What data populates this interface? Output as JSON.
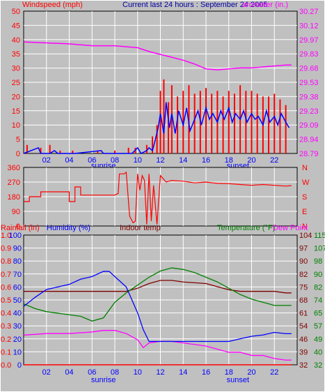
{
  "header": {
    "windspeed_label": "Windspeed (mph)",
    "title": "Current last 24 hours : September 24 2005",
    "barometer_label": "arometer (in.)"
  },
  "panel3_header": {
    "rainfall_label": "Rainfall (in)",
    "humidity_label": "Humidity (%)",
    "indoor_label": "Indoor temp",
    "temperature_label": "Temperature (°F)",
    "dewpoint_label": "Dew Point"
  },
  "colors": {
    "background": "#c0c0c0",
    "grid": "#ffffff",
    "wind": "#ff0000",
    "gust": "#0000ff",
    "barometer": "#ff00ff",
    "title": "#0000a0",
    "humidity": "#0000ff",
    "indoor": "#800000",
    "temperature": "#008000",
    "dewpoint": "#ff00ff",
    "rain": "#ff0000"
  },
  "chart_data": [
    {
      "type": "bar",
      "name": "windspeed-barometer",
      "x_ticks": [
        "02",
        "04",
        "06",
        "08",
        "10",
        "12",
        "14",
        "16",
        "18",
        "20",
        "22"
      ],
      "sun_labels": [
        "sunrise",
        "sunset"
      ],
      "y_ticks": [
        "0",
        "5",
        "10",
        "15",
        "20",
        "25",
        "30",
        "35",
        "40",
        "45",
        "50"
      ],
      "ylim": [
        0,
        50
      ],
      "y2_ticks": [
        "28.79",
        "28.94",
        "29.09",
        "29.23",
        "29.38",
        "29.53",
        "29.68",
        "29.83",
        "29.97",
        "30.12",
        "30.27"
      ],
      "y2lim": [
        28.79,
        30.27
      ],
      "xlim": [
        0,
        24
      ],
      "wind_peak_points": [
        [
          0.3,
          3
        ],
        [
          1.5,
          2
        ],
        [
          2.3,
          3
        ],
        [
          3.2,
          1
        ],
        [
          4.3,
          1
        ],
        [
          6.5,
          1
        ],
        [
          8.0,
          1
        ],
        [
          9.2,
          2
        ],
        [
          9.8,
          2
        ],
        [
          10.8,
          3
        ],
        [
          11.3,
          6
        ],
        [
          11.7,
          10
        ],
        [
          12.0,
          22
        ],
        [
          12.3,
          26
        ],
        [
          12.7,
          18
        ],
        [
          13.0,
          24
        ],
        [
          13.5,
          20
        ],
        [
          14.0,
          22
        ],
        [
          14.5,
          24
        ],
        [
          15.0,
          21
        ],
        [
          15.5,
          22
        ],
        [
          16.0,
          23
        ],
        [
          16.5,
          21
        ],
        [
          17.0,
          22
        ],
        [
          17.5,
          20
        ],
        [
          18.0,
          22
        ],
        [
          18.5,
          21
        ],
        [
          19.0,
          24
        ],
        [
          19.5,
          22
        ],
        [
          20.0,
          22
        ],
        [
          20.5,
          21
        ],
        [
          21.0,
          20
        ],
        [
          21.5,
          20
        ],
        [
          22.0,
          21
        ],
        [
          22.5,
          19
        ],
        [
          23.0,
          17
        ]
      ],
      "gust_points": [
        [
          0.0,
          0
        ],
        [
          1.3,
          2
        ],
        [
          1.5,
          0
        ],
        [
          2.3,
          0
        ],
        [
          2.7,
          1
        ],
        [
          3.0,
          0
        ],
        [
          4.5,
          0
        ],
        [
          6.8,
          1
        ],
        [
          7.0,
          0
        ],
        [
          9.5,
          0
        ],
        [
          10.0,
          2
        ],
        [
          10.3,
          0
        ],
        [
          10.8,
          1
        ],
        [
          11.0,
          2
        ],
        [
          11.3,
          1
        ],
        [
          11.5,
          4
        ],
        [
          11.8,
          9
        ],
        [
          12.0,
          14
        ],
        [
          12.3,
          7
        ],
        [
          12.5,
          18
        ],
        [
          12.8,
          9
        ],
        [
          13.0,
          14
        ],
        [
          13.3,
          7
        ],
        [
          13.6,
          15
        ],
        [
          14.0,
          10
        ],
        [
          14.3,
          16
        ],
        [
          14.6,
          8
        ],
        [
          15.0,
          12
        ],
        [
          15.3,
          15
        ],
        [
          15.6,
          10
        ],
        [
          16.0,
          16
        ],
        [
          16.3,
          12
        ],
        [
          16.6,
          14
        ],
        [
          17.0,
          11
        ],
        [
          17.3,
          15
        ],
        [
          17.6,
          12
        ],
        [
          18.0,
          16
        ],
        [
          18.3,
          11
        ],
        [
          18.6,
          14
        ],
        [
          19.0,
          12
        ],
        [
          19.3,
          15
        ],
        [
          19.6,
          11
        ],
        [
          20.0,
          14
        ],
        [
          20.3,
          12
        ],
        [
          20.6,
          13
        ],
        [
          21.0,
          10
        ],
        [
          21.3,
          15
        ],
        [
          21.6,
          11
        ],
        [
          22.0,
          13
        ],
        [
          22.3,
          10
        ],
        [
          22.6,
          14
        ],
        [
          23.0,
          11
        ],
        [
          23.3,
          9
        ]
      ],
      "barometer_points": [
        [
          0,
          29.95
        ],
        [
          2,
          29.94
        ],
        [
          4,
          29.93
        ],
        [
          6,
          29.91
        ],
        [
          8,
          29.91
        ],
        [
          10,
          29.89
        ],
        [
          11,
          29.85
        ],
        [
          12,
          29.82
        ],
        [
          13,
          29.79
        ],
        [
          14,
          29.76
        ],
        [
          15,
          29.72
        ],
        [
          16,
          29.67
        ],
        [
          17,
          29.66
        ],
        [
          18,
          29.67
        ],
        [
          19,
          29.68
        ],
        [
          20,
          29.68
        ],
        [
          21,
          29.69
        ],
        [
          22,
          29.7
        ],
        [
          23,
          29.71
        ],
        [
          23.5,
          29.71
        ]
      ]
    },
    {
      "type": "line",
      "name": "wind-direction",
      "y_ticks": [
        "360",
        "270",
        "180",
        "90",
        "0"
      ],
      "ylim": [
        0,
        360
      ],
      "compass_labels": [
        "N",
        "W",
        "S",
        "E",
        "N"
      ],
      "xlim": [
        0,
        24
      ],
      "points": [
        [
          0.0,
          150
        ],
        [
          0.5,
          150
        ],
        [
          0.5,
          180
        ],
        [
          1.5,
          180
        ],
        [
          1.5,
          210
        ],
        [
          4.0,
          210
        ],
        [
          4.0,
          150
        ],
        [
          4.5,
          150
        ],
        [
          4.5,
          240
        ],
        [
          5.0,
          240
        ],
        [
          5.0,
          190
        ],
        [
          8.0,
          190
        ],
        [
          8.3,
          200
        ],
        [
          8.4,
          320
        ],
        [
          8.8,
          320
        ],
        [
          9.0,
          330
        ],
        [
          9.3,
          60
        ],
        [
          9.6,
          20
        ],
        [
          9.8,
          30
        ],
        [
          10.0,
          320
        ],
        [
          10.2,
          220
        ],
        [
          10.4,
          310
        ],
        [
          10.6,
          280
        ],
        [
          10.8,
          10
        ],
        [
          11.0,
          320
        ],
        [
          11.2,
          30
        ],
        [
          11.4,
          250
        ],
        [
          11.7,
          10
        ],
        [
          12.0,
          310
        ],
        [
          12.5,
          270
        ],
        [
          13.0,
          280
        ],
        [
          14.0,
          275
        ],
        [
          15.0,
          265
        ],
        [
          16.0,
          270
        ],
        [
          17.0,
          262
        ],
        [
          18.0,
          260
        ],
        [
          19.0,
          255
        ],
        [
          20.0,
          250
        ],
        [
          21.0,
          255
        ],
        [
          22.0,
          250
        ],
        [
          23.0,
          245
        ],
        [
          23.5,
          248
        ]
      ]
    },
    {
      "type": "line",
      "name": "rain-humidity-temperature",
      "y_rain_ticks": [
        "0.0",
        "0.1",
        "0.2",
        "0.3",
        "0.4",
        "0.5",
        "0.6",
        "0.7",
        "0.8",
        "0.9",
        "1.0"
      ],
      "y_hum_ticks": [
        "0",
        "10",
        "20",
        "30",
        "40",
        "50",
        "60",
        "70",
        "80",
        "90",
        "100"
      ],
      "y_indoor_ticks": [
        "32",
        "39",
        "46",
        "54",
        "61",
        "68",
        "75",
        "82",
        "90",
        "97",
        "104"
      ],
      "y_temp_ticks": [
        "32",
        "40",
        "49",
        "57",
        "65",
        "74",
        "82",
        "90",
        "98",
        "107",
        "115"
      ],
      "ylim_humidity": [
        0,
        100
      ],
      "ylim_temperature": [
        32,
        115
      ],
      "xlim": [
        0,
        24
      ],
      "x_ticks": [
        "02",
        "04",
        "06",
        "08",
        "10",
        "12",
        "14",
        "16",
        "18",
        "20",
        "22"
      ],
      "sun_labels": [
        "sunrise",
        "sunset"
      ],
      "humidity": [
        [
          0,
          45
        ],
        [
          1,
          52
        ],
        [
          2,
          58
        ],
        [
          3,
          60
        ],
        [
          4,
          62
        ],
        [
          5,
          66
        ],
        [
          6,
          68
        ],
        [
          7,
          72
        ],
        [
          7.5,
          72
        ],
        [
          8,
          68
        ],
        [
          9,
          60
        ],
        [
          10,
          40
        ],
        [
          10.5,
          27
        ],
        [
          11,
          18
        ],
        [
          12,
          18
        ],
        [
          14,
          18
        ],
        [
          16,
          18
        ],
        [
          18,
          18
        ],
        [
          19,
          20
        ],
        [
          20,
          22
        ],
        [
          21,
          23
        ],
        [
          22,
          25
        ],
        [
          23,
          24
        ],
        [
          23.5,
          24
        ]
      ],
      "indoor_temp": [
        [
          0,
          79
        ],
        [
          2,
          79
        ],
        [
          4,
          79
        ],
        [
          6,
          79
        ],
        [
          8,
          79
        ],
        [
          9,
          79
        ],
        [
          10,
          81
        ],
        [
          11,
          84
        ],
        [
          12,
          86
        ],
        [
          13,
          86
        ],
        [
          14,
          85
        ],
        [
          16,
          84
        ],
        [
          17,
          82
        ],
        [
          18,
          80
        ],
        [
          19,
          79
        ],
        [
          20,
          79
        ],
        [
          21,
          79
        ],
        [
          22,
          79
        ],
        [
          23,
          78
        ],
        [
          23.5,
          78
        ]
      ],
      "temperature": [
        [
          0,
          71
        ],
        [
          1,
          68
        ],
        [
          2,
          66
        ],
        [
          3,
          65
        ],
        [
          4,
          64
        ],
        [
          5,
          63
        ],
        [
          6,
          60
        ],
        [
          7,
          62
        ],
        [
          8,
          72
        ],
        [
          9,
          78
        ],
        [
          10,
          83
        ],
        [
          11,
          88
        ],
        [
          12,
          92
        ],
        [
          13,
          94
        ],
        [
          14,
          93
        ],
        [
          15,
          91
        ],
        [
          16,
          88
        ],
        [
          17,
          85
        ],
        [
          18,
          81
        ],
        [
          19,
          77
        ],
        [
          20,
          74
        ],
        [
          21,
          72
        ],
        [
          22,
          70
        ],
        [
          23,
          70
        ],
        [
          23.5,
          70
        ]
      ],
      "dewpoint": [
        [
          0,
          51
        ],
        [
          2,
          52
        ],
        [
          4,
          52
        ],
        [
          6,
          53
        ],
        [
          7,
          54
        ],
        [
          8,
          54
        ],
        [
          9,
          52
        ],
        [
          10,
          48
        ],
        [
          10.5,
          43
        ],
        [
          11,
          46
        ],
        [
          12,
          47
        ],
        [
          13,
          47
        ],
        [
          14,
          46
        ],
        [
          15,
          45
        ],
        [
          16,
          44
        ],
        [
          17,
          42
        ],
        [
          18,
          40
        ],
        [
          19,
          40
        ],
        [
          20,
          38
        ],
        [
          21,
          38
        ],
        [
          22,
          36
        ],
        [
          23,
          35
        ],
        [
          23.5,
          35
        ]
      ],
      "rainfall": [
        [
          0,
          0.0
        ],
        [
          23.5,
          0.0
        ]
      ]
    }
  ]
}
